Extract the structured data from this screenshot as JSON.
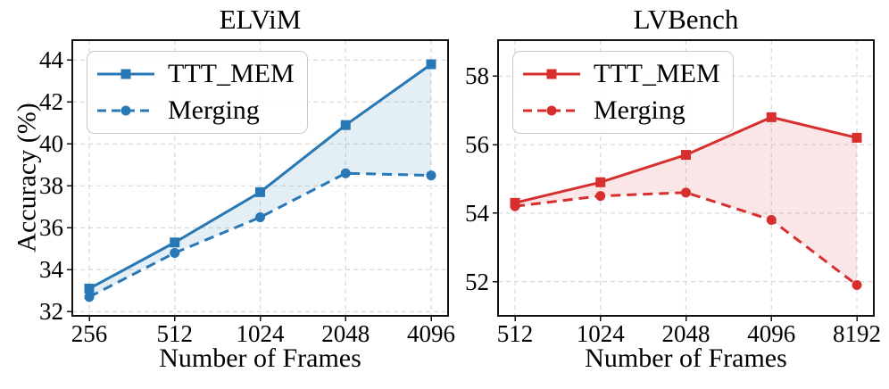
{
  "figure": {
    "type": "line-chart-figure",
    "panel_count": 2
  },
  "chart_data": [
    {
      "type": "line",
      "title": "ELViM",
      "xlabel": "Number of Frames",
      "ylabel": "Accuracy (%)",
      "categories": [
        "256",
        "512",
        "1024",
        "2048",
        "4096"
      ],
      "series": [
        {
          "name": "TTT_MEM",
          "values": [
            33.1,
            35.3,
            37.7,
            40.9,
            43.8
          ],
          "line_style": "solid",
          "marker": "square"
        },
        {
          "name": "Merging",
          "values": [
            32.7,
            34.8,
            36.5,
            38.6,
            38.5
          ],
          "line_style": "dashed",
          "marker": "circle"
        }
      ],
      "yticks": [
        32,
        34,
        36,
        38,
        40,
        42,
        44
      ],
      "ylim": [
        31.8,
        44.95
      ],
      "grid": true,
      "legend_position": "upper left",
      "color": "#2878b5",
      "fill_color": "#2878b5",
      "fill_opacity": 0.13
    },
    {
      "type": "line",
      "title": "LVBench",
      "xlabel": "Number of Frames",
      "ylabel": "",
      "categories": [
        "512",
        "1024",
        "2048",
        "4096",
        "8192"
      ],
      "series": [
        {
          "name": "TTT_MEM",
          "values": [
            54.3,
            54.9,
            55.7,
            56.8,
            56.2
          ],
          "line_style": "solid",
          "marker": "square"
        },
        {
          "name": "Merging",
          "values": [
            54.2,
            54.5,
            54.6,
            53.8,
            51.9
          ],
          "line_style": "dashed",
          "marker": "circle"
        }
      ],
      "yticks": [
        52,
        54,
        56,
        58
      ],
      "ylim": [
        51.0,
        59.05
      ],
      "grid": true,
      "legend_position": "upper left",
      "color": "#d62f2e",
      "fill_color": "#d62f2e",
      "fill_opacity": 0.12
    }
  ],
  "style": {
    "gridline_color": "#d8d8d8",
    "spine_color": "#111111",
    "background": "#ffffff"
  }
}
